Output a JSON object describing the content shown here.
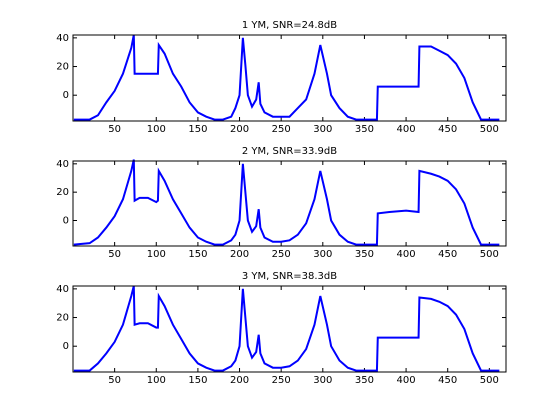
{
  "chart_data": [
    {
      "type": "line",
      "title": "1 YM, SNR=24.8dB",
      "color": "#0000ff",
      "x": [
        1,
        20,
        30,
        40,
        50,
        60,
        70,
        73,
        74,
        80,
        90,
        100,
        102,
        103,
        110,
        120,
        130,
        140,
        150,
        160,
        170,
        180,
        190,
        195,
        200,
        204,
        207,
        210,
        215,
        220,
        223,
        225,
        230,
        240,
        250,
        260,
        270,
        280,
        290,
        297,
        305,
        310,
        320,
        330,
        340,
        365,
        366,
        380,
        400,
        415,
        416,
        430,
        440,
        450,
        460,
        470,
        480,
        490,
        512
      ],
      "values": [
        -17,
        -17,
        -14,
        -5,
        3,
        15,
        33,
        42,
        15,
        15,
        15,
        15,
        15,
        35,
        29,
        15,
        6,
        -5,
        -12,
        -15,
        -17,
        -17,
        -15,
        -9,
        0,
        40,
        21,
        0,
        -8,
        -3,
        9,
        -6,
        -12,
        -15,
        -15,
        -15,
        -9,
        -3,
        15,
        35,
        15,
        0,
        -9,
        -15,
        -17,
        -17,
        6,
        6,
        6,
        6,
        34,
        34,
        31,
        28,
        22,
        12,
        -5,
        -17,
        -17
      ],
      "xlim": [
        0,
        520
      ],
      "ylim": [
        -18,
        42
      ],
      "xticks": [
        50,
        100,
        150,
        200,
        250,
        300,
        350,
        400,
        450,
        500
      ],
      "yticks": [
        0,
        20,
        40
      ]
    },
    {
      "type": "line",
      "title": "2 YM, SNR=33.9dB",
      "color": "#0000ff",
      "x": [
        1,
        20,
        30,
        40,
        50,
        60,
        70,
        73,
        74,
        80,
        90,
        100,
        102,
        103,
        110,
        120,
        130,
        140,
        150,
        160,
        170,
        180,
        190,
        195,
        200,
        204,
        207,
        210,
        215,
        220,
        223,
        225,
        230,
        240,
        250,
        260,
        270,
        280,
        290,
        297,
        305,
        310,
        320,
        330,
        340,
        365,
        366,
        380,
        400,
        415,
        416,
        430,
        440,
        450,
        460,
        470,
        480,
        490,
        512
      ],
      "values": [
        -17,
        -16,
        -12,
        -5,
        3,
        15,
        35,
        43,
        14,
        16,
        16,
        13,
        14,
        35,
        28,
        15,
        5,
        -5,
        -12,
        -15,
        -17,
        -17,
        -14,
        -10,
        0,
        40,
        20,
        0,
        -8,
        -4,
        8,
        -5,
        -12,
        -15,
        -15,
        -14,
        -10,
        -2,
        15,
        35,
        15,
        0,
        -10,
        -15,
        -17,
        -17,
        5,
        6,
        7,
        6,
        35,
        33,
        31,
        28,
        22,
        12,
        -5,
        -17,
        -17
      ],
      "xlim": [
        0,
        520
      ],
      "ylim": [
        -18,
        42
      ],
      "xticks": [
        50,
        100,
        150,
        200,
        250,
        300,
        350,
        400,
        450,
        500
      ],
      "yticks": [
        0,
        20,
        40
      ]
    },
    {
      "type": "line",
      "title": "3 YM, SNR=38.3dB",
      "color": "#0000ff",
      "x": [
        1,
        20,
        30,
        40,
        50,
        60,
        70,
        73,
        74,
        80,
        90,
        100,
        102,
        103,
        110,
        120,
        130,
        140,
        150,
        160,
        170,
        180,
        190,
        195,
        200,
        204,
        207,
        210,
        215,
        220,
        223,
        225,
        230,
        240,
        250,
        260,
        270,
        280,
        290,
        297,
        305,
        310,
        320,
        330,
        340,
        365,
        366,
        380,
        400,
        415,
        416,
        430,
        440,
        450,
        460,
        470,
        480,
        490,
        512
      ],
      "values": [
        -17,
        -17,
        -12,
        -5,
        3,
        15,
        35,
        42,
        15,
        16,
        16,
        13,
        13,
        35,
        28,
        15,
        5,
        -5,
        -12,
        -15,
        -17,
        -17,
        -14,
        -10,
        0,
        40,
        20,
        0,
        -8,
        -4,
        8,
        -5,
        -12,
        -15,
        -15,
        -14,
        -10,
        -2,
        15,
        35,
        15,
        0,
        -10,
        -15,
        -17,
        -17,
        6,
        6,
        6,
        6,
        34,
        33,
        31,
        28,
        22,
        12,
        -5,
        -17,
        -17
      ],
      "xlim": [
        0,
        520
      ],
      "ylim": [
        -18,
        42
      ],
      "xticks": [
        50,
        100,
        150,
        200,
        250,
        300,
        350,
        400,
        450,
        500
      ],
      "yticks": [
        0,
        20,
        40
      ]
    }
  ]
}
